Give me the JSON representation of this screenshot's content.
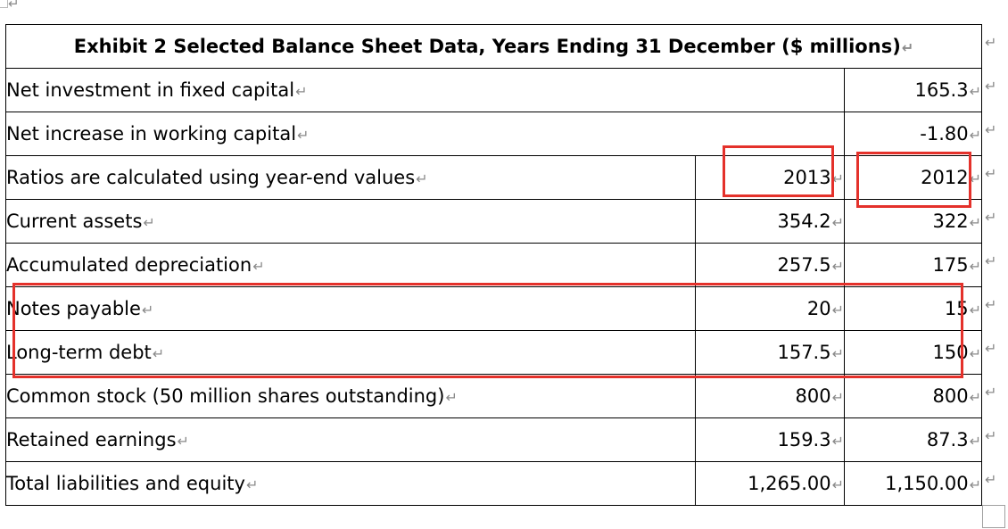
{
  "title": "Exhibit 2 Selected Balance Sheet Data, Years Ending 31 December ($ millions)",
  "return_glyph": "↵",
  "accent_color": "#e4312b",
  "rows_single": [
    {
      "label": "Net investment in fixed capital",
      "value": "165.3"
    },
    {
      "label": "Net increase in working capital",
      "value": "-1.80"
    }
  ],
  "header_row": {
    "label": "Ratios are calculated using year-end values",
    "col1": "2013",
    "col2": "2012"
  },
  "rows": [
    {
      "label": "Current assets",
      "col1": "354.2",
      "col2": "322"
    },
    {
      "label": "Accumulated depreciation",
      "col1": "257.5",
      "col2": "175"
    },
    {
      "label": "Notes payable",
      "col1": "20",
      "col2": "15"
    },
    {
      "label": "Long-term debt",
      "col1": "157.5",
      "col2": "150"
    },
    {
      "label": "Common stock (50 million shares outstanding)",
      "col1": "800",
      "col2": "800"
    },
    {
      "label": "Retained earnings",
      "col1": "159.3",
      "col2": "87.3"
    },
    {
      "label": "Total liabilities and equity",
      "col1": "1,265.00",
      "col2": "1,150.00"
    }
  ]
}
